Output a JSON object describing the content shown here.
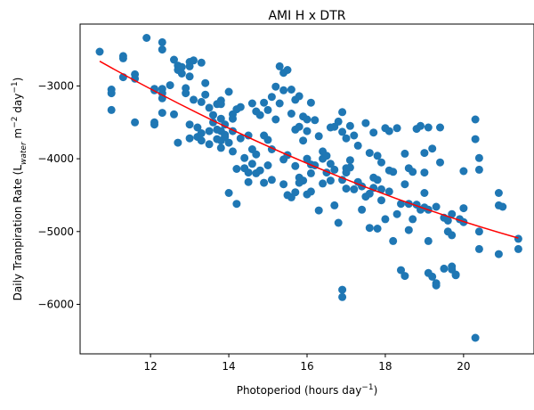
{
  "chart_data": {
    "type": "scatter",
    "title": "AMI H x DTR",
    "xlabel": {
      "main": "Photoperiod (hours day",
      "sup": "−1",
      "tail": ")"
    },
    "ylabel": {
      "p1": "Daily Tranpiration Rate (L",
      "sub": "water",
      "p2": " m",
      "sup1": "−2",
      "p3": " day",
      "sup2": "−1",
      "p4": ")"
    },
    "xlim": [
      10.2,
      21.8
    ],
    "ylim": [
      -6680,
      -2150
    ],
    "xticks": [
      12,
      14,
      16,
      18,
      20
    ],
    "xtick_labels": [
      "12",
      "14",
      "16",
      "18",
      "20"
    ],
    "yticks": [
      -3000,
      -4000,
      -5000,
      -6000
    ],
    "ytick_labels": [
      "−3000",
      "−4000",
      "−5000",
      "−6000"
    ],
    "colors": {
      "points": "#1f77b4",
      "fit": "#ff0000"
    },
    "points_x": [
      10.7,
      11.0,
      11.0,
      11.0,
      11.3,
      11.3,
      11.3,
      11.6,
      11.6,
      11.6,
      11.9,
      12.1,
      12.1,
      12.1,
      12.1,
      12.3,
      12.3,
      12.3,
      12.3,
      12.3,
      12.3,
      12.5,
      12.6,
      12.6,
      12.7,
      12.7,
      12.7,
      12.8,
      12.8,
      12.9,
      12.9,
      13.0,
      13.0,
      13.0,
      13.0,
      13.0,
      13.1,
      13.1,
      13.2,
      13.2,
      13.3,
      13.3,
      13.3,
      13.3,
      13.4,
      13.4,
      13.5,
      13.5,
      13.5,
      13.6,
      13.6,
      13.7,
      13.7,
      13.7,
      13.8,
      13.8,
      13.8,
      13.8,
      13.8,
      13.8,
      13.9,
      13.9,
      13.9,
      14.0,
      14.0,
      14.0,
      14.1,
      14.1,
      14.1,
      14.1,
      14.2,
      14.2,
      14.2,
      14.3,
      14.3,
      14.4,
      14.4,
      14.5,
      14.5,
      14.5,
      14.6,
      14.6,
      14.6,
      14.7,
      14.7,
      14.7,
      14.8,
      14.8,
      14.9,
      14.9,
      14.9,
      15.0,
      15.0,
      15.0,
      15.1,
      15.1,
      15.1,
      15.2,
      15.2,
      15.3,
      15.3,
      15.4,
      15.4,
      15.4,
      15.4,
      15.5,
      15.5,
      15.5,
      15.6,
      15.6,
      15.6,
      15.7,
      15.7,
      15.7,
      15.7,
      15.8,
      15.8,
      15.8,
      15.8,
      15.9,
      15.9,
      15.9,
      16.0,
      16.0,
      16.0,
      16.0,
      16.1,
      16.1,
      16.1,
      16.1,
      16.2,
      16.2,
      16.3,
      16.3,
      16.4,
      16.4,
      16.4,
      16.5,
      16.5,
      16.6,
      16.6,
      16.6,
      16.7,
      16.7,
      16.7,
      16.8,
      16.8,
      16.9,
      16.9,
      16.9,
      16.9,
      16.9,
      17.0,
      17.0,
      17.0,
      17.0,
      17.1,
      17.1,
      17.1,
      17.2,
      17.2,
      17.3,
      17.3,
      17.4,
      17.4,
      17.5,
      17.5,
      17.6,
      17.6,
      17.6,
      17.7,
      17.7,
      17.7,
      17.8,
      17.8,
      17.8,
      17.9,
      17.9,
      17.9,
      18.0,
      18.0,
      18.1,
      18.1,
      18.1,
      18.2,
      18.2,
      18.3,
      18.3,
      18.4,
      18.4,
      18.5,
      18.5,
      18.5,
      18.6,
      18.6,
      18.6,
      18.7,
      18.7,
      18.8,
      18.8,
      18.9,
      18.9,
      19.0,
      19.0,
      19.0,
      19.0,
      19.1,
      19.1,
      19.1,
      19.1,
      19.2,
      19.2,
      19.3,
      19.3,
      19.3,
      19.4,
      19.4,
      19.5,
      19.5,
      19.6,
      19.6,
      19.7,
      19.7,
      19.7,
      19.7,
      19.8,
      19.8,
      19.9,
      20.0,
      20.0,
      20.0,
      20.3,
      20.3,
      20.3,
      20.4,
      20.4,
      20.4,
      20.4,
      20.9,
      20.9,
      20.9,
      21.0,
      21.4,
      21.4
    ],
    "points_y": [
      -2530,
      -3050,
      -3100,
      -3330,
      -2590,
      -2620,
      -2880,
      -2840,
      -2900,
      -3500,
      -2340,
      -3040,
      -3060,
      -3500,
      -3530,
      -2400,
      -2500,
      -3040,
      -3100,
      -3170,
      -3370,
      -2990,
      -2640,
      -3390,
      -2720,
      -2780,
      -3780,
      -2740,
      -2830,
      -3030,
      -3100,
      -2670,
      -2730,
      -2870,
      -3530,
      -3720,
      -2650,
      -3190,
      -3570,
      -3700,
      -2680,
      -3220,
      -3650,
      -3750,
      -2960,
      -3120,
      -3300,
      -3620,
      -3800,
      -3400,
      -3500,
      -3250,
      -3600,
      -3730,
      -3200,
      -3250,
      -3450,
      -3620,
      -3750,
      -3850,
      -3530,
      -3670,
      -3700,
      -3080,
      -3780,
      -4470,
      -3390,
      -3450,
      -3620,
      -3900,
      -3320,
      -4140,
      -4620,
      -3290,
      -3720,
      -3990,
      -4130,
      -3680,
      -4190,
      -4320,
      -3240,
      -3870,
      -4070,
      -3350,
      -3940,
      -4200,
      -3400,
      -4160,
      -3230,
      -3680,
      -4330,
      -3330,
      -3740,
      -4090,
      -3150,
      -3870,
      -4290,
      -3010,
      -3460,
      -2730,
      -3240,
      -2820,
      -3060,
      -4010,
      -4350,
      -2780,
      -3950,
      -4500,
      -3050,
      -3380,
      -4530,
      -3190,
      -3600,
      -4100,
      -4460,
      -3140,
      -3560,
      -4260,
      -4330,
      -3420,
      -3750,
      -4300,
      -3460,
      -3620,
      -4000,
      -4490,
      -3230,
      -4080,
      -4200,
      -4450,
      -3470,
      -4090,
      -3690,
      -4710,
      -4000,
      -3900,
      -4340,
      -3960,
      -4190,
      -3570,
      -4070,
      -4300,
      -3560,
      -4150,
      -4640,
      -3490,
      -4880,
      -3630,
      -4290,
      -5800,
      -5900,
      -3360,
      -3720,
      -4130,
      -4410,
      -4190,
      -3550,
      -4020,
      -4120,
      -4420,
      -3680,
      -4320,
      -3820,
      -4380,
      -4700,
      -3510,
      -4520,
      -4950,
      -3920,
      -4480,
      -4260,
      -3640,
      -4400,
      -4960,
      -3960,
      -4290,
      -4570,
      -4050,
      -4420,
      -4830,
      -3580,
      -4160,
      -3620,
      -4450,
      -5130,
      -4180,
      -4760,
      -3580,
      -5530,
      -4620,
      -5610,
      -3930,
      -4350,
      -4980,
      -4130,
      -4620,
      -4830,
      -4180,
      -4630,
      -3590,
      -4700,
      -3550,
      -4470,
      -3920,
      -4190,
      -4670,
      -5130,
      -3570,
      -4700,
      -5570,
      -5620,
      -3860,
      -4660,
      -5710,
      -5740,
      -3570,
      -4050,
      -4810,
      -5510,
      -4850,
      -5000,
      -4760,
      -5050,
      -5480,
      -5520,
      -5600,
      -5590,
      -4830,
      -4170,
      -4680,
      -4870,
      -6460,
      -3460,
      -3730,
      -4150,
      -3990,
      -5000,
      -5240,
      -5310,
      -4470,
      -4640,
      -4660,
      -5240,
      -5100,
      -5220
    ],
    "fit_line": {
      "x_start": 10.7,
      "y_start": -2660,
      "x_end": 21.4,
      "y_end": -5090,
      "curvature": 200
    }
  }
}
